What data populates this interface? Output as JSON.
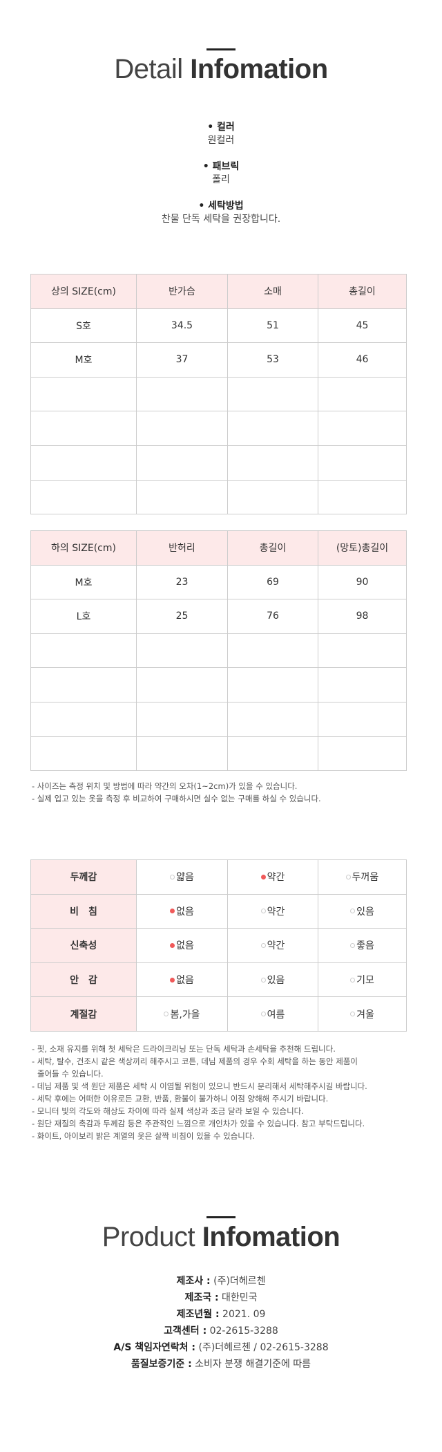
{
  "detail": {
    "title_light": "Detail",
    "title_bold": "Infomation",
    "items": [
      {
        "label": "• 컬러",
        "value": "원컬러"
      },
      {
        "label": "• 패브릭",
        "value": "폴리"
      },
      {
        "label": "• 세탁방법",
        "value": "찬물 단독 세탁을 권장합니다."
      }
    ]
  },
  "top_size": {
    "headers": [
      "상의 SIZE(cm)",
      "반가슴",
      "소매",
      "총길이"
    ],
    "rows": [
      [
        "S호",
        "34.5",
        "51",
        "45"
      ],
      [
        "M호",
        "37",
        "53",
        "46"
      ],
      [
        "",
        "",
        "",
        ""
      ],
      [
        "",
        "",
        "",
        ""
      ],
      [
        "",
        "",
        "",
        ""
      ],
      [
        "",
        "",
        "",
        ""
      ]
    ]
  },
  "bottom_size": {
    "headers": [
      "하의 SIZE(cm)",
      "반허리",
      "총길이",
      "(망토)총길이"
    ],
    "rows": [
      [
        "M호",
        "23",
        "69",
        "90"
      ],
      [
        "L호",
        "25",
        "76",
        "98"
      ],
      [
        "",
        "",
        "",
        ""
      ],
      [
        "",
        "",
        "",
        ""
      ],
      [
        "",
        "",
        "",
        ""
      ],
      [
        "",
        "",
        "",
        ""
      ]
    ]
  },
  "size_notes": [
    "- 사이즈는 측정 위치 및 방법에 따라 약간의 오차(1~2cm)가 있을 수 있습니다.",
    "- 실제 입고 있는 옷을 측정 후 비교하여 구매하시면 실수 없는 구매를 하실 수 있습니다."
  ],
  "attributes": {
    "selected_color": "#f05a5a",
    "rows": [
      {
        "label": "두께감",
        "options": [
          "얇음",
          "약간",
          "두꺼움"
        ],
        "selected": 1
      },
      {
        "label": "비　침",
        "options": [
          "없음",
          "약간",
          "있음"
        ],
        "selected": 0
      },
      {
        "label": "신축성",
        "options": [
          "없음",
          "약간",
          "좋음"
        ],
        "selected": 0
      },
      {
        "label": "안　감",
        "options": [
          "없음",
          "있음",
          "기모"
        ],
        "selected": 0
      },
      {
        "label": "계절감",
        "options": [
          "봄,가을",
          "여름",
          "겨울"
        ],
        "selected": -1
      }
    ]
  },
  "care_notes": [
    "- 핏, 소재 유지를 위해 첫 세탁은 드라이크리닝 또는 단독 세탁과 손세탁을 추천해 드립니다.",
    "- 세탁, 탈수, 건조시 같은 색상끼리 해주시고 코튼, 데님 제품의 경우 수회 세탁을 하는 동안 제품이",
    "줄어들 수 있습니다.",
    "- 데님 제품 및 색 원단 제품은 세탁 시 이염될 위험이 있으니 반드시 분리해서 세탁해주시길 바랍니다.",
    "- 세탁 후에는 어떠한 이유로든 교환, 반품, 환불이 불가하니 이점 양해해 주시기 바랍니다.",
    "- 모니터 빛의 각도와 해상도 차이에 따라 실제 색상과 조금 달라 보일 수 있습니다.",
    "- 원단 재질의 촉감과 두께감 등은 주관적인 느낌으로 개인차가 있을 수 있습니다. 참고 부탁드립니다.",
    "- 화이트, 아이보리 밝은 계열의 옷은 살짝 비침이 있을 수 있습니다."
  ],
  "product": {
    "title_light": "Product",
    "title_bold": "Infomation",
    "items": [
      {
        "label": "제조사 :",
        "value": " (주)더헤르첸"
      },
      {
        "label": "제조국 :",
        "value": " 대한민국"
      },
      {
        "label": "제조년월 :",
        "value": " 2021. 09"
      },
      {
        "label": "고객센터 :",
        "value": " 02-2615-3288"
      },
      {
        "label": "A/S 책임자연락처 :",
        "value": " (주)더헤르첸 / 02-2615-3288"
      },
      {
        "label": "품질보증기준 :",
        "value": " 소비자 분쟁 해결기준에 따름"
      }
    ]
  }
}
